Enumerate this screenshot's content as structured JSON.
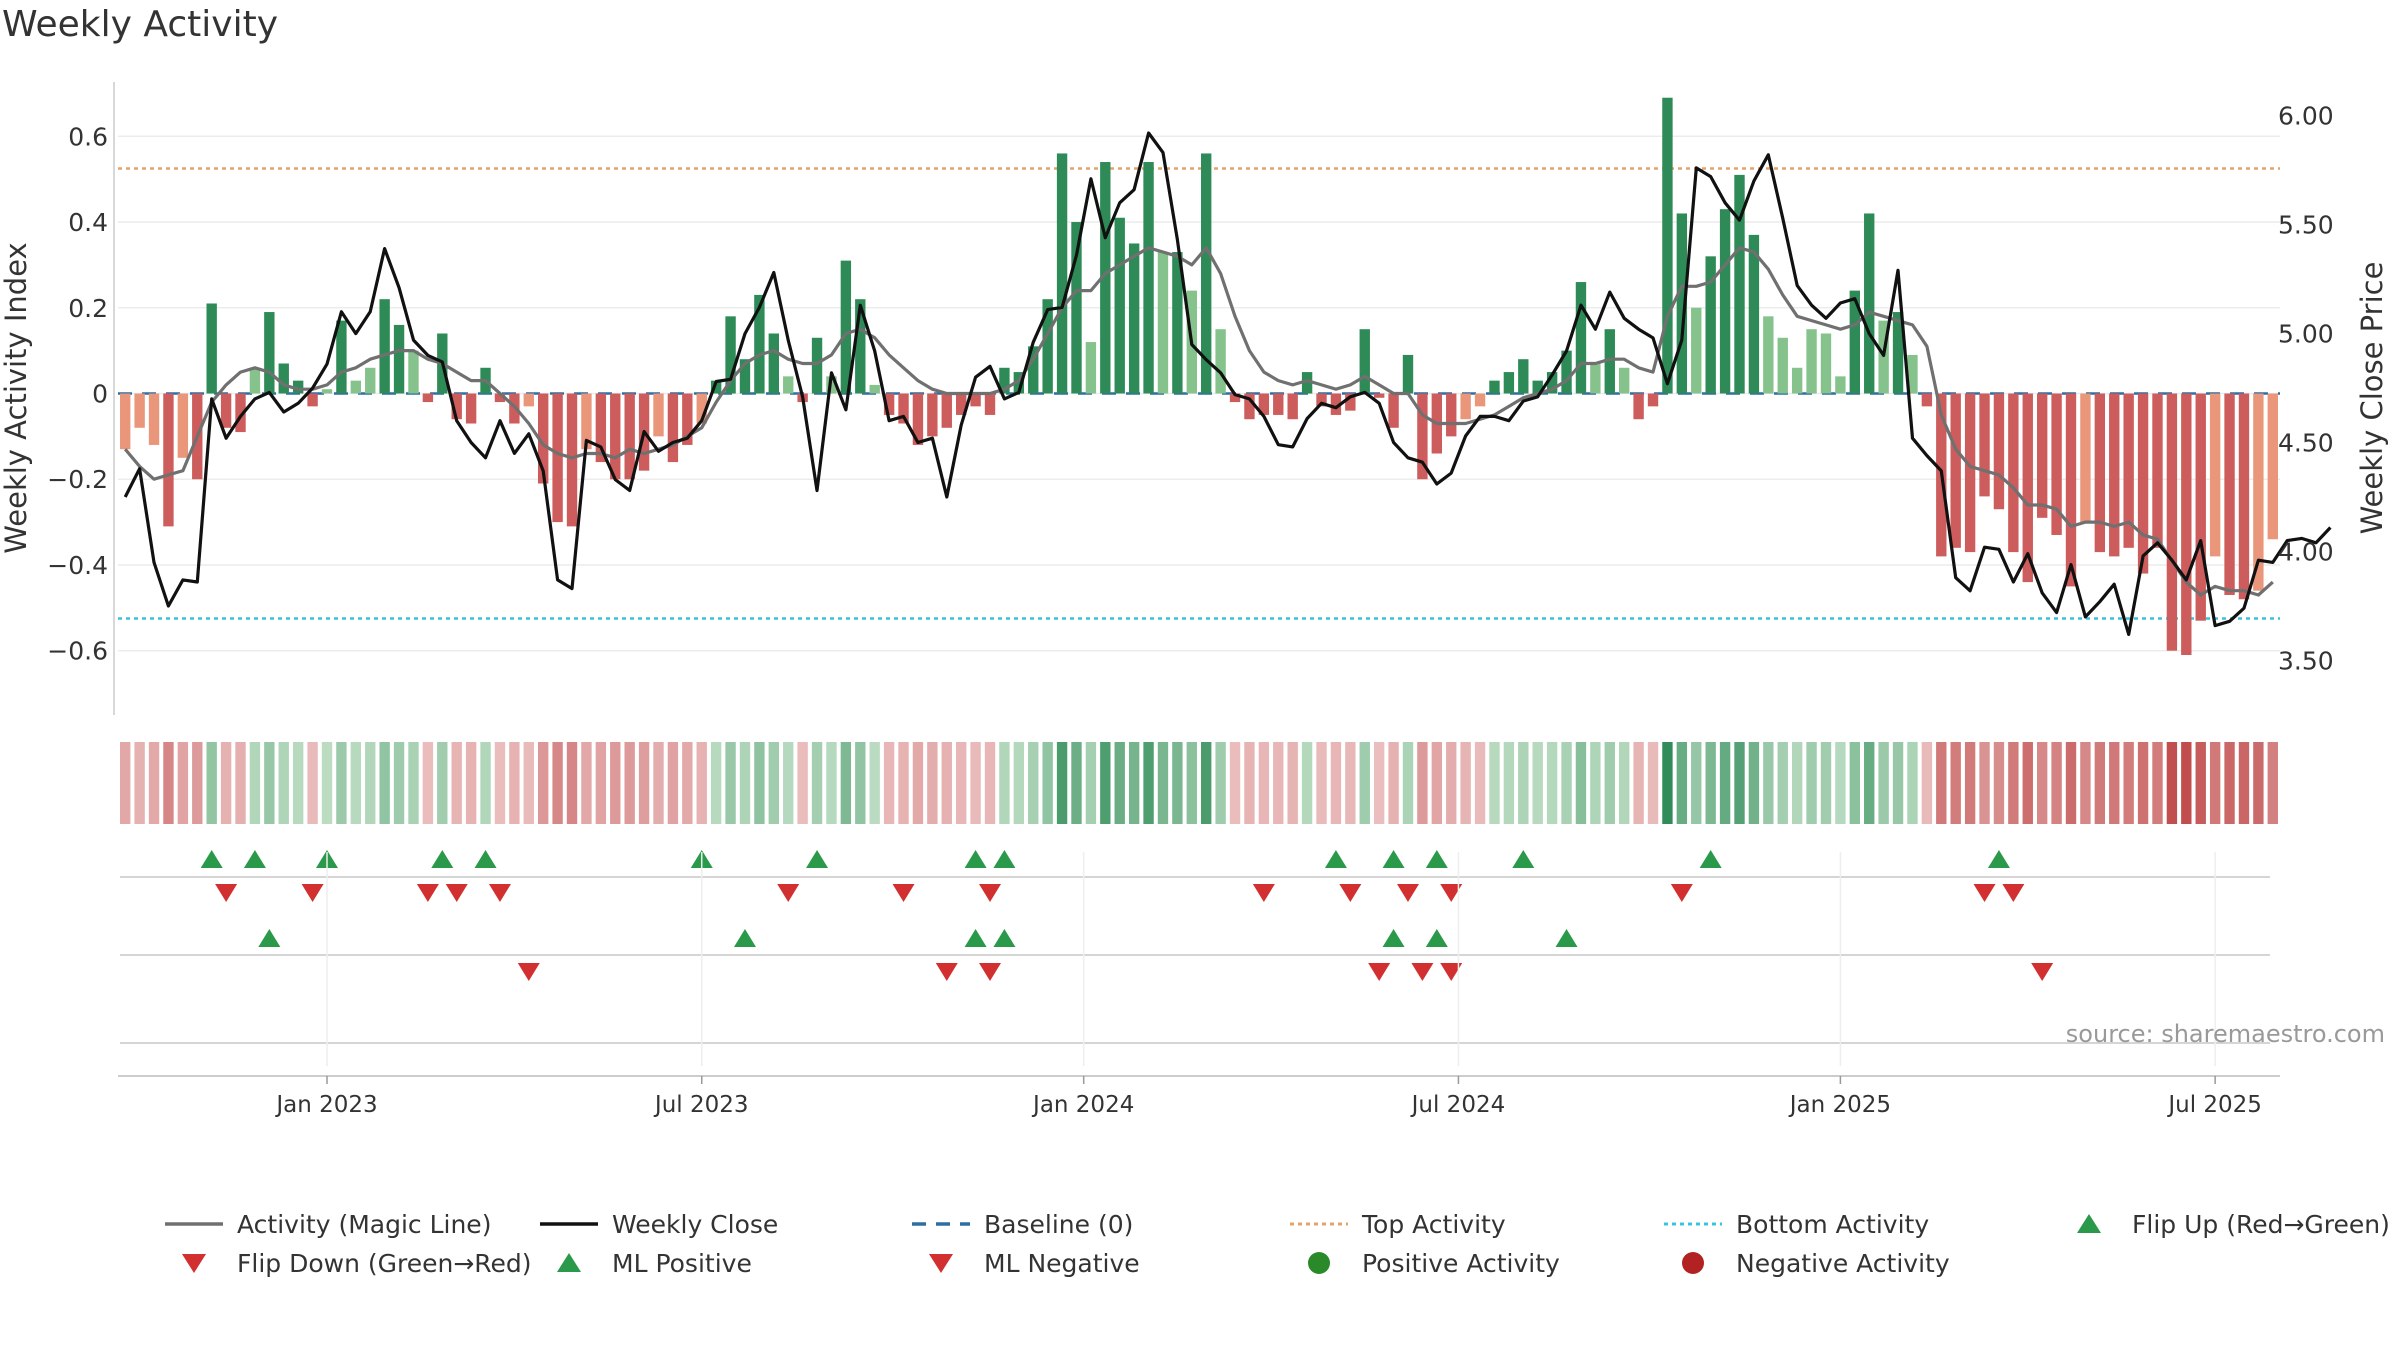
{
  "chart_data": {
    "type": "bar+line",
    "title": "Weekly Activity",
    "ylabel_left": "Weekly Activity Index",
    "ylabel_right": "Weekly Close Price",
    "ylim_left": [
      -0.75,
      0.75
    ],
    "ylim_right": [
      3.25,
      6.2
    ],
    "left_ticks": [
      0.6,
      0.4,
      0.2,
      0,
      -0.2,
      -0.4,
      -0.6
    ],
    "left_tick_labels": [
      "0.6",
      "0.4",
      "0.2",
      "0",
      "−0.2",
      "−0.4",
      "−0.6"
    ],
    "right_ticks": [
      6.0,
      5.5,
      5.0,
      4.5,
      4.0,
      3.5
    ],
    "right_tick_labels": [
      "6.00",
      "5.50",
      "5.00",
      "4.50",
      "4.00",
      "3.50"
    ],
    "x_ticks": [
      14.5,
      40.5,
      67,
      93,
      119.5,
      145.5
    ],
    "x_tick_labels": [
      "Jan 2023",
      "Jul 2023",
      "Jan 2024",
      "Jul 2024",
      "Jan 2025",
      "Jul 2025"
    ],
    "top_activity": 0.525,
    "bottom_activity": -0.525,
    "baseline": 0,
    "activity": [
      -0.13,
      -0.08,
      -0.12,
      -0.31,
      -0.15,
      -0.2,
      0.21,
      -0.08,
      -0.09,
      0.06,
      0.19,
      0.07,
      0.03,
      -0.03,
      0.01,
      0.17,
      0.03,
      0.06,
      0.22,
      0.16,
      0.1,
      -0.02,
      0.14,
      -0.06,
      -0.07,
      0.06,
      -0.02,
      -0.07,
      -0.03,
      -0.21,
      -0.3,
      -0.31,
      -0.13,
      -0.16,
      -0.2,
      -0.2,
      -0.18,
      -0.1,
      -0.16,
      -0.12,
      -0.07,
      0.03,
      0.18,
      0.08,
      0.23,
      0.14,
      0.04,
      -0.02,
      0.13,
      0.04,
      0.31,
      0.22,
      0.02,
      -0.05,
      -0.07,
      -0.12,
      -0.1,
      -0.08,
      -0.05,
      -0.03,
      -0.05,
      0.06,
      0.05,
      0.11,
      0.22,
      0.56,
      0.4,
      0.12,
      0.54,
      0.41,
      0.35,
      0.54,
      0.33,
      0.33,
      0.24,
      0.56,
      0.15,
      -0.02,
      -0.06,
      -0.05,
      -0.05,
      -0.06,
      0.05,
      -0.03,
      -0.05,
      -0.04,
      0.15,
      -0.01,
      -0.08,
      0.09,
      -0.2,
      -0.14,
      -0.1,
      -0.06,
      -0.03,
      0.03,
      0.05,
      0.08,
      0.03,
      0.05,
      0.1,
      0.26,
      0.07,
      0.15,
      0.06,
      -0.06,
      -0.03,
      0.69,
      0.42,
      0.2,
      0.32,
      0.43,
      0.51,
      0.37,
      0.18,
      0.13,
      0.06,
      0.15,
      0.14,
      0.04,
      0.24,
      0.42,
      0.17,
      0.19,
      0.09,
      -0.03,
      -0.38,
      -0.36,
      -0.37,
      -0.24,
      -0.27,
      -0.37,
      -0.44,
      -0.29,
      -0.33,
      -0.45,
      -0.3,
      -0.37,
      -0.38,
      -0.36,
      -0.42,
      -0.36,
      -0.6,
      -0.61,
      -0.53,
      -0.38,
      -0.47,
      -0.48,
      -0.46,
      -0.34
    ],
    "weekly_close": [
      4.25,
      4.38,
      3.95,
      3.75,
      3.87,
      3.86,
      4.7,
      4.52,
      4.62,
      4.7,
      4.73,
      4.64,
      4.68,
      4.75,
      4.86,
      5.1,
      5.0,
      5.1,
      5.39,
      5.21,
      4.97,
      4.9,
      4.87,
      4.6,
      4.5,
      4.43,
      4.6,
      4.45,
      4.54,
      4.37,
      3.87,
      3.83,
      4.51,
      4.48,
      4.33,
      4.28,
      4.55,
      4.46,
      4.5,
      4.52,
      4.6,
      4.78,
      4.79,
      5.0,
      5.12,
      5.28,
      4.97,
      4.71,
      4.28,
      4.82,
      4.65,
      5.13,
      4.92,
      4.6,
      4.62,
      4.5,
      4.52,
      4.25,
      4.58,
      4.8,
      4.85,
      4.7,
      4.73,
      4.96,
      5.11,
      5.12,
      5.36,
      5.71,
      5.44,
      5.6,
      5.66,
      5.92,
      5.83,
      5.43,
      4.95,
      4.88,
      4.82,
      4.72,
      4.7,
      4.62,
      4.49,
      4.48,
      4.61,
      4.68,
      4.66,
      4.71,
      4.73,
      4.68,
      4.5,
      4.43,
      4.41,
      4.31,
      4.36,
      4.53,
      4.62,
      4.62,
      4.6,
      4.69,
      4.71,
      4.81,
      4.92,
      5.13,
      5.02,
      5.19,
      5.07,
      5.02,
      4.98,
      4.77,
      4.97,
      5.76,
      5.72,
      5.6,
      5.52,
      5.7,
      5.82,
      5.53,
      5.22,
      5.13,
      5.07,
      5.14,
      5.16,
      5.0,
      4.9,
      5.29,
      4.52,
      4.44,
      4.37,
      3.88,
      3.82,
      4.02,
      4.01,
      3.86,
      3.99,
      3.81,
      3.72,
      3.94,
      3.7,
      3.77,
      3.85,
      3.62,
      3.98,
      4.04,
      3.96,
      3.87,
      4.05,
      3.66,
      3.68,
      3.74,
      3.96,
      3.95,
      4.05,
      4.06,
      4.04,
      4.11
    ],
    "magic_line": [
      -0.13,
      -0.17,
      -0.2,
      -0.19,
      -0.18,
      -0.1,
      -0.02,
      0.02,
      0.05,
      0.06,
      0.05,
      0.02,
      0.01,
      0.01,
      0.02,
      0.05,
      0.06,
      0.08,
      0.09,
      0.1,
      0.1,
      0.08,
      0.07,
      0.05,
      0.03,
      0.03,
      0.0,
      -0.03,
      -0.07,
      -0.12,
      -0.14,
      -0.15,
      -0.14,
      -0.14,
      -0.15,
      -0.13,
      -0.14,
      -0.13,
      -0.12,
      -0.1,
      -0.08,
      -0.02,
      0.03,
      0.07,
      0.09,
      0.1,
      0.08,
      0.07,
      0.07,
      0.09,
      0.14,
      0.15,
      0.13,
      0.09,
      0.06,
      0.03,
      0.01,
      0.0,
      0.0,
      0.0,
      0.0,
      0.01,
      0.03,
      0.08,
      0.14,
      0.2,
      0.24,
      0.24,
      0.28,
      0.3,
      0.32,
      0.34,
      0.33,
      0.32,
      0.3,
      0.34,
      0.28,
      0.18,
      0.1,
      0.05,
      0.03,
      0.02,
      0.03,
      0.02,
      0.01,
      0.02,
      0.04,
      0.02,
      0.0,
      0.0,
      -0.05,
      -0.07,
      -0.07,
      -0.07,
      -0.06,
      -0.05,
      -0.03,
      -0.01,
      0.0,
      0.01,
      0.03,
      0.07,
      0.07,
      0.08,
      0.08,
      0.06,
      0.05,
      0.18,
      0.25,
      0.25,
      0.26,
      0.3,
      0.34,
      0.33,
      0.29,
      0.23,
      0.18,
      0.17,
      0.16,
      0.15,
      0.16,
      0.19,
      0.18,
      0.17,
      0.16,
      0.11,
      -0.05,
      -0.13,
      -0.17,
      -0.18,
      -0.19,
      -0.22,
      -0.26,
      -0.26,
      -0.27,
      -0.31,
      -0.3,
      -0.3,
      -0.31,
      -0.3,
      -0.33,
      -0.34,
      -0.39,
      -0.44,
      -0.47,
      -0.45,
      -0.46,
      -0.46,
      -0.47,
      -0.44
    ],
    "flip_up": [
      6,
      9,
      14,
      22,
      25,
      40,
      48,
      59,
      61,
      84,
      88,
      91,
      97,
      110,
      130
    ],
    "flip_down": [
      7,
      13,
      21,
      23,
      26,
      46,
      54,
      60,
      79,
      85,
      89,
      92,
      108,
      129,
      131
    ],
    "ml_positive": [
      10,
      43,
      59,
      61,
      88,
      91,
      100
    ],
    "ml_negative": [
      28,
      57,
      60,
      87,
      90,
      92,
      133
    ],
    "legend": [
      {
        "label": "Activity (Magic Line)",
        "marker": "line",
        "color": "#707070"
      },
      {
        "label": "Weekly Close",
        "marker": "line",
        "color": "#111111"
      },
      {
        "label": "Baseline (0)",
        "marker": "dashed",
        "color": "#2e6fa3"
      },
      {
        "label": "Top Activity",
        "marker": "dotted",
        "color": "#e3a46b"
      },
      {
        "label": "Bottom Activity",
        "marker": "dotted",
        "color": "#39c4d9"
      },
      {
        "label": "Flip Up (Red→Green)",
        "marker": "triangle-up",
        "color": "#2a9a4a"
      },
      {
        "label": "Flip Down (Green→Red)",
        "marker": "triangle-down",
        "color": "#d23030"
      },
      {
        "label": "ML Positive",
        "marker": "triangle-up",
        "color": "#2a9a4a"
      },
      {
        "label": "ML Negative",
        "marker": "triangle-down",
        "color": "#d23030"
      },
      {
        "label": "Positive Activity",
        "marker": "circle",
        "color": "#2a8a2a"
      },
      {
        "label": "Negative Activity",
        "marker": "circle",
        "color": "#b22222"
      }
    ],
    "source": "source: sharemaestro.com"
  },
  "colors": {
    "pos_strong": "#2e8b57",
    "pos_light": "#86c28b",
    "neg_strong": "#cd5c5c",
    "neg_light": "#e9967a",
    "close_line": "#111111",
    "magic_line": "#707070"
  }
}
